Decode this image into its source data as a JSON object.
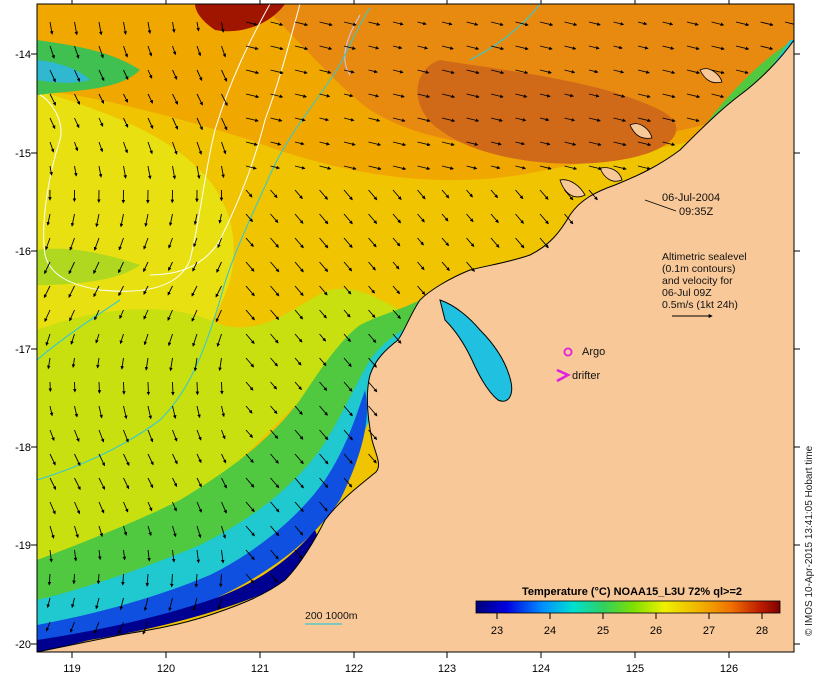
{
  "map": {
    "lon_ticks": [
      "119",
      "120",
      "121",
      "122",
      "123",
      "124",
      "125",
      "126"
    ],
    "lat_ticks": [
      "-14",
      "-15",
      "-16",
      "-17",
      "-18",
      "-19",
      "-20"
    ],
    "lon_range": [
      118.6,
      126.7
    ],
    "lat_range": [
      -20.1,
      -13.6
    ]
  },
  "annotations": {
    "date": "06-Jul-2004",
    "time": "09:35Z",
    "altimetry_line1": "Altimetric sealevel",
    "altimetry_line2": "(0.1m contours)",
    "altimetry_line3": "and velocity for",
    "altimetry_line4": "06-Jul 09Z",
    "altimetry_line5": "0.5m/s (1kt 24h)",
    "argo_label": "Argo",
    "drifter_label": "drifter",
    "bathy_label": "200  1000m"
  },
  "colorbar": {
    "title": "Temperature (°C) NOAA15_L3U 72% ql>=2",
    "ticks": [
      "23",
      "24",
      "25",
      "26",
      "27",
      "28"
    ],
    "range": [
      22.4,
      28.4
    ]
  },
  "credit": "© IMOS 10-Apr-2015 13:41:05 Hobart time",
  "colors": {
    "land": "#f8c898",
    "bathy_contour": "#39c8d0",
    "argo_marker": "#e020e0",
    "drifter_marker": "#e020e0"
  }
}
